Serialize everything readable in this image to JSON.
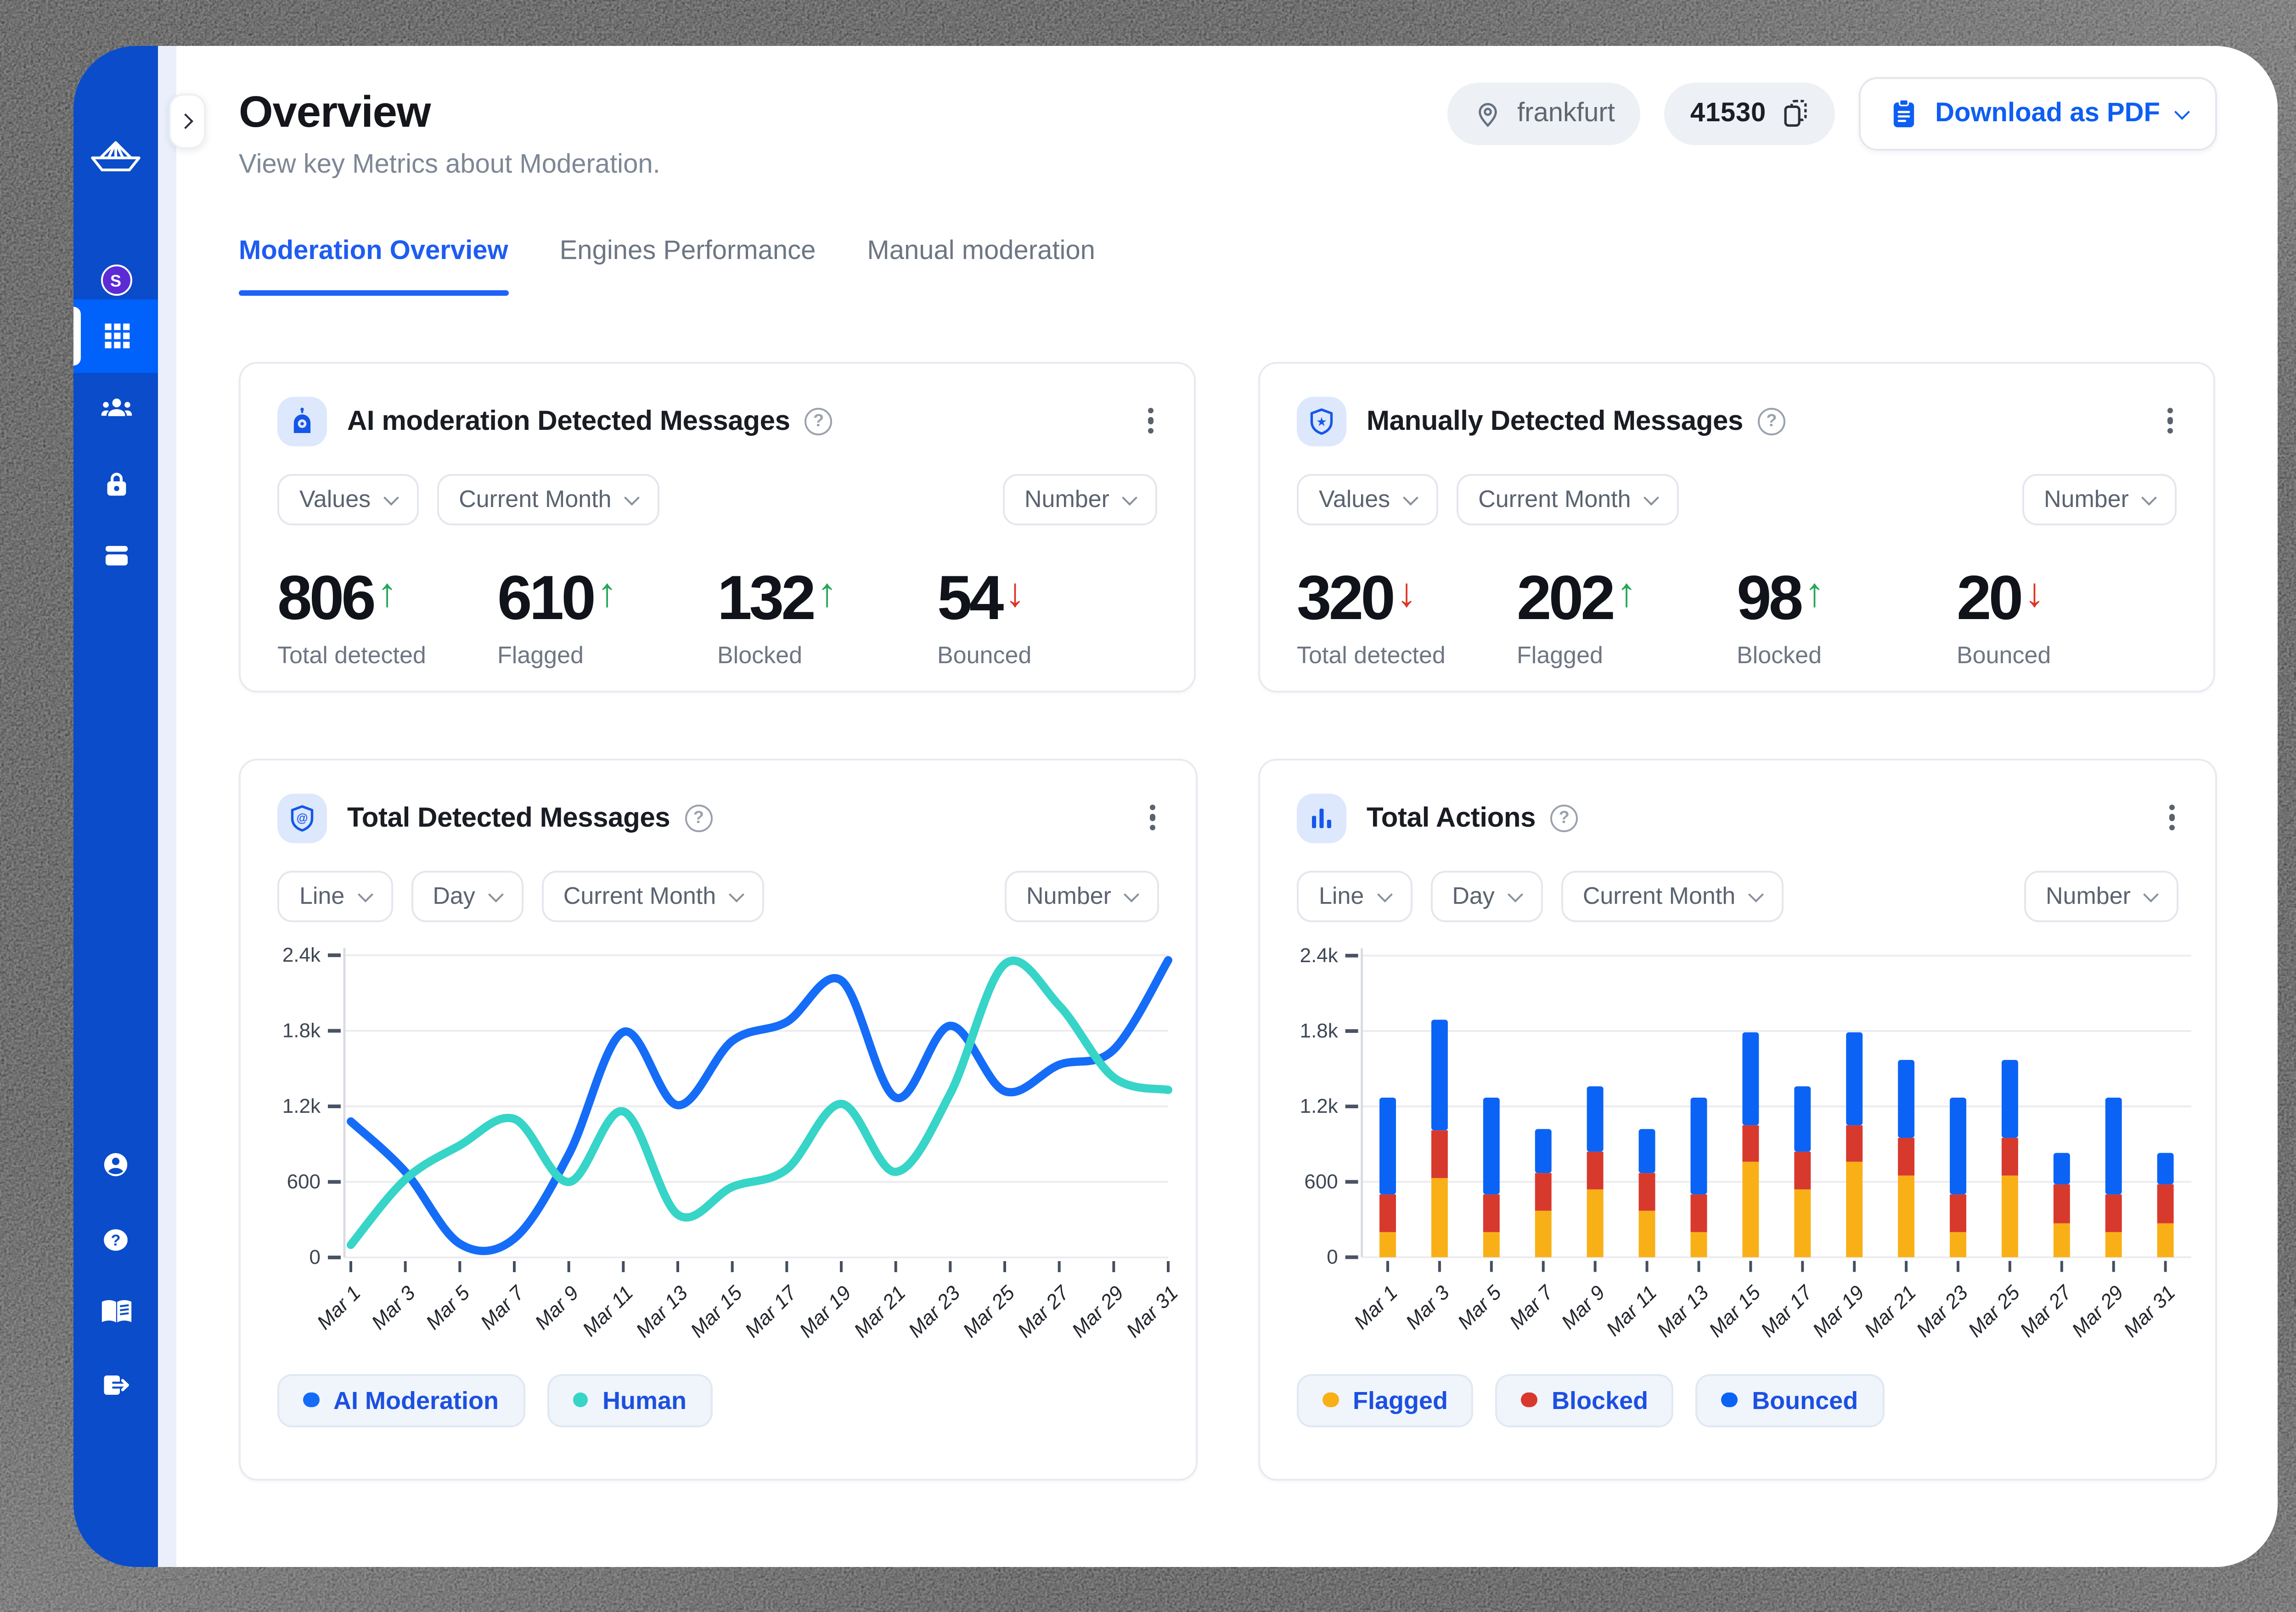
{
  "app": {
    "accent": "#0d5ef2",
    "sidebar_color": "#0a4cc9",
    "sidebar_active_color": "#0061fb",
    "avatar_letter": "S"
  },
  "header": {
    "title": "Overview",
    "subtitle": "View key Metrics about Moderation.",
    "location": "frankfurt",
    "app_id": "41530",
    "download_label": "Download as PDF"
  },
  "tabs": [
    {
      "label": "Moderation Overview",
      "active": true
    },
    {
      "label": "Engines Performance",
      "active": false
    },
    {
      "label": "Manual moderation",
      "active": false
    }
  ],
  "filters": {
    "values": "Values",
    "current_month": "Current Month",
    "number": "Number",
    "line": "Line",
    "day": "Day"
  },
  "cards": {
    "ai": {
      "title": "AI moderation Detected Messages",
      "stats": [
        {
          "value": "806",
          "arrow": "↑",
          "arrow_color": "#21a757",
          "label": "Total detected"
        },
        {
          "value": "610",
          "arrow": "↑",
          "arrow_color": "#21a757",
          "label": "Flagged"
        },
        {
          "value": "132",
          "arrow": "↑",
          "arrow_color": "#21a757",
          "label": "Blocked"
        },
        {
          "value": "54",
          "arrow": "↓",
          "arrow_color": "#dd3322",
          "label": "Bounced"
        }
      ]
    },
    "manual": {
      "title": "Manually Detected Messages",
      "stats": [
        {
          "value": "320",
          "arrow": "↓",
          "arrow_color": "#dd3322",
          "label": "Total detected"
        },
        {
          "value": "202",
          "arrow": "↑",
          "arrow_color": "#21a757",
          "label": "Flagged"
        },
        {
          "value": "98",
          "arrow": "↑",
          "arrow_color": "#21a757",
          "label": "Blocked"
        },
        {
          "value": "20",
          "arrow": "↓",
          "arrow_color": "#dd3322",
          "label": "Bounced"
        }
      ]
    },
    "detected": {
      "title": "Total Detected Messages"
    },
    "actions": {
      "title": "Total Actions"
    }
  },
  "chart_data": [
    {
      "type": "line",
      "title": "Total Detected Messages",
      "categories": [
        "Mar 1",
        "Mar 3",
        "Mar 5",
        "Mar 7",
        "Mar 9",
        "Mar 11",
        "Mar 13",
        "Mar 15",
        "Mar 17",
        "Mar 19",
        "Mar 21",
        "Mar 23",
        "Mar 25",
        "Mar 27",
        "Mar 29",
        "Mar 31"
      ],
      "series": [
        {
          "name": "AI Moderation",
          "color": "#156cf7",
          "values": [
            1080,
            680,
            110,
            150,
            820,
            1790,
            1210,
            1720,
            1870,
            2200,
            1270,
            1840,
            1320,
            1530,
            1650,
            2360
          ]
        },
        {
          "name": "Human",
          "color": "#37d4c8",
          "values": [
            100,
            620,
            890,
            1100,
            600,
            1160,
            340,
            560,
            700,
            1220,
            680,
            1300,
            2330,
            2000,
            1430,
            1330
          ]
        }
      ],
      "xlabel": "",
      "ylabel": "",
      "ylim": [
        0,
        2400
      ],
      "yticks": [
        [
          0,
          "0"
        ],
        [
          600,
          "600"
        ],
        [
          1200,
          "1.2k"
        ],
        [
          1800,
          "1.8k"
        ],
        [
          2400,
          "2.4k"
        ]
      ],
      "grid": true,
      "legend_position": "bottom"
    },
    {
      "type": "bar",
      "stacked": true,
      "title": "Total Actions",
      "categories": [
        "Mar 1",
        "Mar 3",
        "Mar 5",
        "Mar 7",
        "Mar 9",
        "Mar 11",
        "Mar 13",
        "Mar 15",
        "Mar 17",
        "Mar 19",
        "Mar 21",
        "Mar 23",
        "Mar 25",
        "Mar 27",
        "Mar 29",
        "Mar 31"
      ],
      "series": [
        {
          "name": "Flagged",
          "color": "#f9b017",
          "values": [
            200,
            630,
            200,
            370,
            540,
            370,
            200,
            760,
            540,
            760,
            650,
            200,
            650,
            270,
            200,
            270
          ]
        },
        {
          "name": "Blocked",
          "color": "#d8392d",
          "values": [
            300,
            380,
            300,
            300,
            300,
            300,
            300,
            290,
            300,
            290,
            300,
            300,
            300,
            310,
            300,
            310
          ]
        },
        {
          "name": "Bounced",
          "color": "#0b63f5",
          "values": [
            770,
            880,
            770,
            350,
            520,
            350,
            770,
            740,
            520,
            740,
            620,
            770,
            620,
            250,
            770,
            250
          ]
        }
      ],
      "xlabel": "",
      "ylabel": "",
      "ylim": [
        0,
        2400
      ],
      "yticks": [
        [
          0,
          "0"
        ],
        [
          600,
          "600"
        ],
        [
          1200,
          "1.2k"
        ],
        [
          1800,
          "1.8k"
        ],
        [
          2400,
          "2.4k"
        ]
      ],
      "grid": true,
      "legend_position": "bottom"
    }
  ]
}
